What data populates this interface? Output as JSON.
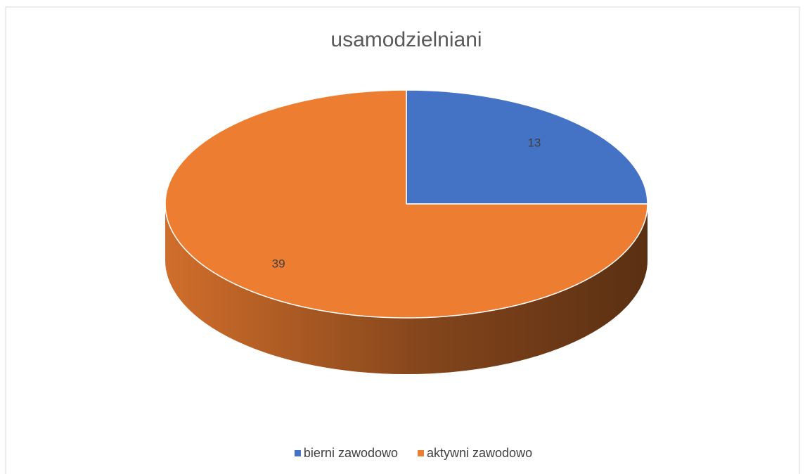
{
  "chart_data": {
    "type": "pie",
    "title": "usamodzielniani",
    "categories": [
      "bierni zawodowo",
      "aktywni zawodowo"
    ],
    "values": [
      13,
      39
    ],
    "colors": [
      "#4472c4",
      "#ed7d31"
    ],
    "legend": "bottom"
  }
}
